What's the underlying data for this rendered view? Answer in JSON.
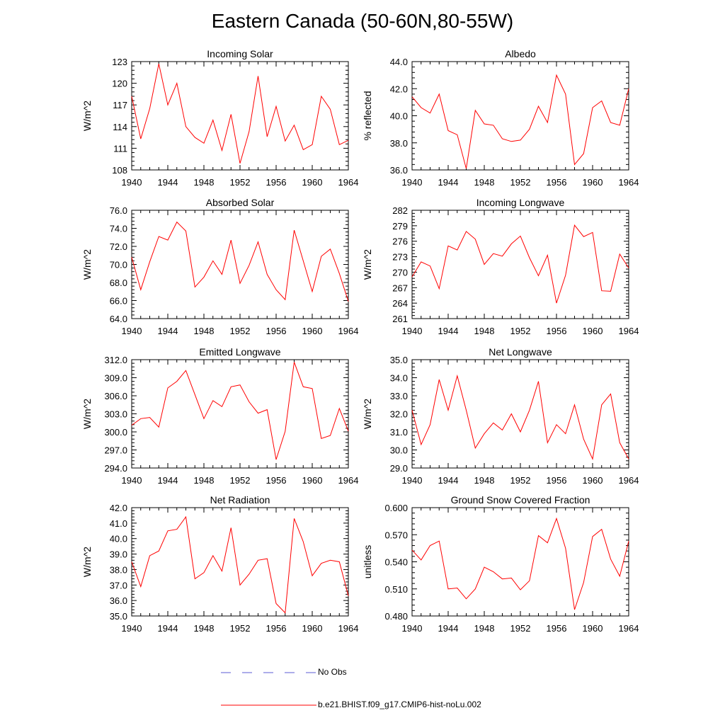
{
  "figure": {
    "title": "Eastern Canada (50-60N,80-55W)"
  },
  "legend": {
    "items": [
      {
        "label": "No Obs",
        "color": "#5b5bd6",
        "dash": true
      },
      {
        "label": "b.e21.BHIST.f09_g17.CMIP6-hist-noLu.002",
        "color": "#ff0000",
        "dash": false
      }
    ]
  },
  "colors": {
    "series": "#ff0000",
    "axis": "#000000"
  },
  "chart_data": [
    {
      "type": "line",
      "title": "Incoming Solar",
      "ylabel": "W/m^2",
      "xlim": [
        1940,
        1964
      ],
      "ylim": [
        108,
        123
      ],
      "xticks": [
        "1940",
        "1944",
        "1948",
        "1952",
        "1956",
        "1960",
        "1964"
      ],
      "yticks": [
        "108",
        "111",
        "114",
        "117",
        "120",
        "123"
      ],
      "x": [
        1940,
        1941,
        1942,
        1943,
        1944,
        1945,
        1946,
        1947,
        1948,
        1949,
        1950,
        1951,
        1952,
        1953,
        1954,
        1955,
        1956,
        1957,
        1958,
        1959,
        1960,
        1961,
        1962,
        1963,
        1964
      ],
      "series": [
        {
          "values": [
            118.2,
            112.3,
            116.5,
            122.7,
            117.0,
            120.0,
            114.0,
            112.5,
            111.7,
            114.9,
            110.7,
            115.7,
            108.9,
            113.3,
            121.0,
            112.6,
            116.8,
            112.0,
            114.2,
            110.8,
            111.5,
            118.2,
            116.4,
            111.5,
            112.1
          ]
        }
      ]
    },
    {
      "type": "line",
      "title": "Albedo",
      "ylabel": "% reflected",
      "xlim": [
        1940,
        1964
      ],
      "ylim": [
        36.0,
        44.0
      ],
      "xticks": [
        "1940",
        "1944",
        "1948",
        "1952",
        "1956",
        "1960",
        "1964"
      ],
      "yticks": [
        "36.0",
        "38.0",
        "40.0",
        "42.0",
        "44.0"
      ],
      "x": [
        1940,
        1941,
        1942,
        1943,
        1944,
        1945,
        1946,
        1947,
        1948,
        1949,
        1950,
        1951,
        1952,
        1953,
        1954,
        1955,
        1956,
        1957,
        1958,
        1959,
        1960,
        1961,
        1962,
        1963,
        1964
      ],
      "series": [
        {
          "values": [
            41.4,
            40.6,
            40.2,
            41.6,
            38.9,
            38.6,
            36.1,
            40.4,
            39.4,
            39.3,
            38.3,
            38.1,
            38.2,
            39.0,
            40.7,
            39.5,
            43.0,
            41.6,
            36.4,
            37.2,
            40.6,
            41.1,
            39.5,
            39.3,
            42.0
          ]
        }
      ]
    },
    {
      "type": "line",
      "title": "Absorbed Solar",
      "ylabel": "W/m^2",
      "xlim": [
        1940,
        1964
      ],
      "ylim": [
        64.0,
        76.0
      ],
      "xticks": [
        "1940",
        "1944",
        "1948",
        "1952",
        "1956",
        "1960",
        "1964"
      ],
      "yticks": [
        "64.0",
        "66.0",
        "68.0",
        "70.0",
        "72.0",
        "74.0",
        "76.0"
      ],
      "x": [
        1940,
        1941,
        1942,
        1943,
        1944,
        1945,
        1946,
        1947,
        1948,
        1949,
        1950,
        1951,
        1952,
        1953,
        1954,
        1955,
        1956,
        1957,
        1958,
        1959,
        1960,
        1961,
        1962,
        1963,
        1964
      ],
      "series": [
        {
          "values": [
            70.8,
            67.2,
            70.3,
            73.1,
            72.7,
            74.7,
            73.7,
            67.5,
            68.6,
            70.4,
            68.9,
            72.7,
            67.9,
            69.9,
            72.5,
            68.9,
            67.2,
            66.1,
            73.8,
            70.4,
            67.0,
            70.9,
            71.7,
            69.0,
            65.9
          ]
        }
      ]
    },
    {
      "type": "line",
      "title": "Incoming Longwave",
      "ylabel": "W/m^2",
      "xlim": [
        1940,
        1964
      ],
      "ylim": [
        261,
        282
      ],
      "xticks": [
        "1940",
        "1944",
        "1948",
        "1952",
        "1956",
        "1960",
        "1964"
      ],
      "yticks": [
        "261",
        "264",
        "267",
        "270",
        "273",
        "276",
        "279",
        "282"
      ],
      "x": [
        1940,
        1941,
        1942,
        1943,
        1944,
        1945,
        1946,
        1947,
        1948,
        1949,
        1950,
        1951,
        1952,
        1953,
        1954,
        1955,
        1956,
        1957,
        1958,
        1959,
        1960,
        1961,
        1962,
        1963,
        1964
      ],
      "series": [
        {
          "values": [
            269.1,
            272.0,
            271.2,
            266.8,
            275.1,
            274.3,
            277.9,
            276.4,
            271.5,
            273.6,
            273.1,
            275.5,
            277.0,
            272.8,
            269.3,
            273.3,
            264.0,
            269.4,
            279.1,
            276.9,
            277.7,
            266.4,
            266.3,
            273.5,
            270.8
          ]
        }
      ]
    },
    {
      "type": "line",
      "title": "Emitted Longwave",
      "ylabel": "W/m^2",
      "xlim": [
        1940,
        1964
      ],
      "ylim": [
        294.0,
        312.0
      ],
      "xticks": [
        "1940",
        "1944",
        "1948",
        "1952",
        "1956",
        "1960",
        "1964"
      ],
      "yticks": [
        "294.0",
        "297.0",
        "300.0",
        "303.0",
        "306.0",
        "309.0",
        "312.0"
      ],
      "x": [
        1940,
        1941,
        1942,
        1943,
        1944,
        1945,
        1946,
        1947,
        1948,
        1949,
        1950,
        1951,
        1952,
        1953,
        1954,
        1955,
        1956,
        1957,
        1958,
        1959,
        1960,
        1961,
        1962,
        1963,
        1964
      ],
      "series": [
        {
          "values": [
            301.1,
            302.2,
            302.4,
            300.8,
            307.3,
            308.4,
            310.2,
            306.2,
            302.2,
            305.2,
            304.2,
            307.5,
            307.8,
            305.0,
            303.1,
            303.7,
            295.4,
            300.1,
            311.6,
            307.5,
            307.2,
            298.9,
            299.4,
            303.9,
            300.1
          ]
        }
      ]
    },
    {
      "type": "line",
      "title": "Net Longwave",
      "ylabel": "W/m^2",
      "xlim": [
        1940,
        1964
      ],
      "ylim": [
        29.0,
        35.0
      ],
      "xticks": [
        "1940",
        "1944",
        "1948",
        "1952",
        "1956",
        "1960",
        "1964"
      ],
      "yticks": [
        "29.0",
        "30.0",
        "31.0",
        "32.0",
        "33.0",
        "34.0",
        "35.0"
      ],
      "x": [
        1940,
        1941,
        1942,
        1943,
        1944,
        1945,
        1946,
        1947,
        1948,
        1949,
        1950,
        1951,
        1952,
        1953,
        1954,
        1955,
        1956,
        1957,
        1958,
        1959,
        1960,
        1961,
        1962,
        1963,
        1964
      ],
      "series": [
        {
          "values": [
            32.2,
            30.3,
            31.4,
            33.9,
            32.2,
            34.1,
            32.2,
            30.1,
            30.9,
            31.5,
            31.1,
            32.0,
            31.0,
            32.2,
            33.8,
            30.4,
            31.4,
            30.9,
            32.5,
            30.6,
            29.5,
            32.5,
            33.1,
            30.4,
            29.5
          ]
        }
      ]
    },
    {
      "type": "line",
      "title": "Net Radiation",
      "ylabel": "W/m^2",
      "xlim": [
        1940,
        1964
      ],
      "ylim": [
        35.0,
        42.0
      ],
      "xticks": [
        "1940",
        "1944",
        "1948",
        "1952",
        "1956",
        "1960",
        "1964"
      ],
      "yticks": [
        "35.0",
        "36.0",
        "37.0",
        "38.0",
        "39.0",
        "40.0",
        "41.0",
        "42.0"
      ],
      "x": [
        1940,
        1941,
        1942,
        1943,
        1944,
        1945,
        1946,
        1947,
        1948,
        1949,
        1950,
        1951,
        1952,
        1953,
        1954,
        1955,
        1956,
        1957,
        1958,
        1959,
        1960,
        1961,
        1962,
        1963,
        1964
      ],
      "series": [
        {
          "values": [
            38.5,
            36.9,
            38.9,
            39.2,
            40.5,
            40.6,
            41.4,
            37.4,
            37.8,
            38.9,
            37.9,
            40.7,
            37.0,
            37.7,
            38.6,
            38.7,
            35.8,
            35.2,
            41.3,
            39.8,
            37.6,
            38.4,
            38.6,
            38.5,
            36.3
          ]
        }
      ]
    },
    {
      "type": "line",
      "title": "Ground Snow Covered Fraction",
      "ylabel": "unitless",
      "xlim": [
        1940,
        1964
      ],
      "ylim": [
        0.48,
        0.6
      ],
      "xticks": [
        "1940",
        "1944",
        "1948",
        "1952",
        "1956",
        "1960",
        "1964"
      ],
      "yticks": [
        "0.480",
        "0.510",
        "0.540",
        "0.570",
        "0.600"
      ],
      "x": [
        1940,
        1941,
        1942,
        1943,
        1944,
        1945,
        1946,
        1947,
        1948,
        1949,
        1950,
        1951,
        1952,
        1953,
        1954,
        1955,
        1956,
        1957,
        1958,
        1959,
        1960,
        1961,
        1962,
        1963,
        1964
      ],
      "series": [
        {
          "values": [
            0.553,
            0.542,
            0.558,
            0.563,
            0.51,
            0.511,
            0.499,
            0.51,
            0.534,
            0.529,
            0.521,
            0.522,
            0.509,
            0.519,
            0.569,
            0.561,
            0.588,
            0.555,
            0.487,
            0.517,
            0.568,
            0.576,
            0.543,
            0.524,
            0.563
          ]
        }
      ]
    }
  ]
}
